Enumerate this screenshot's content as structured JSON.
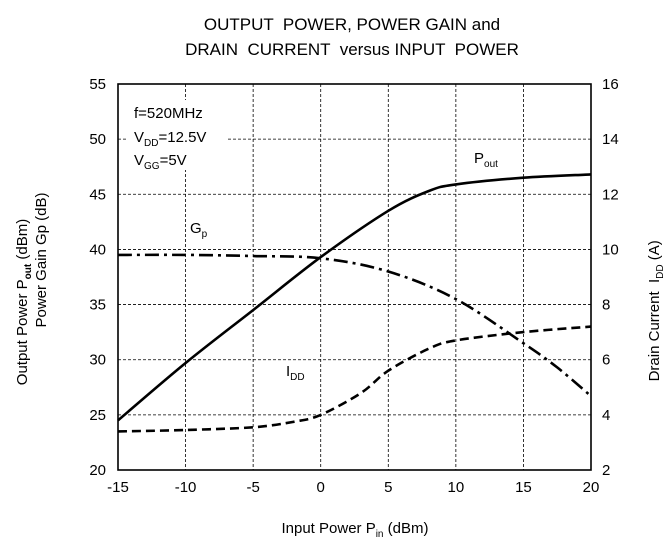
{
  "chart_data": {
    "type": "line",
    "title_line1": "OUTPUT  POWER, POWER GAIN and",
    "title_line2": "DRAIN  CURRENT  versus INPUT  POWER",
    "xlabel": {
      "pre": "Input Power P",
      "sub": "in",
      "post": " (dBm)"
    },
    "ylabel_left": {
      "line1_pre": "Output Power P",
      "line1_sub": "out",
      "line1_post": " (dBm)",
      "line2": "Power Gain Gp (dB)"
    },
    "ylabel_right": {
      "pre": "Drain Current  I",
      "sub": "DD",
      "post": " (A)"
    },
    "xlim": [
      -15,
      20
    ],
    "ylim_left": [
      20,
      55
    ],
    "ylim_right": [
      2,
      16
    ],
    "x_ticks": [
      "-15",
      "-10",
      "-5",
      "0",
      "5",
      "10",
      "15",
      "20"
    ],
    "y_ticks_left": [
      "20",
      "25",
      "30",
      "35",
      "40",
      "45",
      "50",
      "55"
    ],
    "y_ticks_right": [
      "2",
      "4",
      "6",
      "8",
      "10",
      "12",
      "14",
      "16"
    ],
    "grid": true,
    "conditions": [
      {
        "pre": "f=520MHz",
        "sub": "",
        "post": ""
      },
      {
        "pre": "V",
        "sub": "DD",
        "post": "=12.5V"
      },
      {
        "pre": "V",
        "sub": "GG",
        "post": "=5V"
      }
    ],
    "series": [
      {
        "name": "Pout",
        "label_main": "P",
        "label_sub": "out",
        "axis": "left",
        "style": "solid",
        "x": [
          -15,
          -10,
          -5,
          0,
          5,
          8,
          10,
          15,
          20
        ],
        "y": [
          24.5,
          29.7,
          34.5,
          39.3,
          43.5,
          45.3,
          45.9,
          46.5,
          46.8
        ]
      },
      {
        "name": "Gp",
        "label_main": "G",
        "label_sub": "p",
        "axis": "left",
        "style": "dashdot",
        "x": [
          -15,
          -10,
          -5,
          0,
          5,
          10,
          15,
          17.5,
          20
        ],
        "y": [
          39.5,
          39.5,
          39.4,
          39.2,
          38.0,
          35.5,
          31.5,
          29.3,
          26.7
        ]
      },
      {
        "name": "IDD",
        "label_main": "I",
        "label_sub": "DD",
        "axis": "right",
        "style": "dashed",
        "x": [
          -15,
          -10,
          -5,
          -2,
          0,
          3,
          5,
          8,
          10,
          15,
          20
        ],
        "y": [
          3.4,
          3.45,
          3.55,
          3.75,
          4.0,
          4.8,
          5.6,
          6.4,
          6.7,
          7.0,
          7.2
        ]
      }
    ]
  }
}
